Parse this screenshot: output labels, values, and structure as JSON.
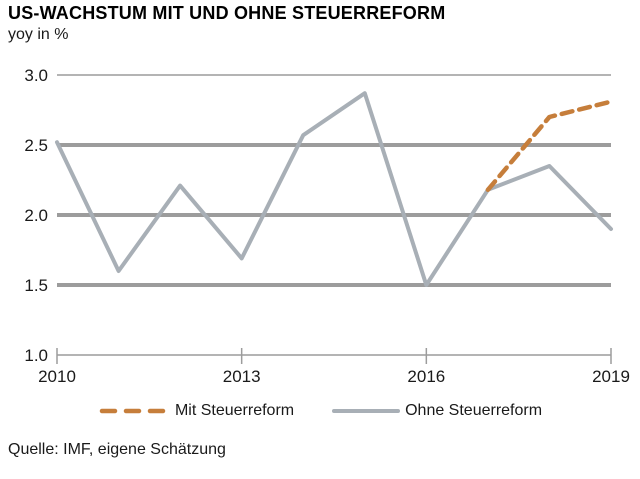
{
  "header": {
    "title": "US-WACHSTUM MIT UND OHNE STEUERREFORM",
    "subtitle": "yoy in %"
  },
  "chart_data": {
    "type": "line",
    "title": "US-WACHSTUM MIT UND OHNE STEUERREFORM",
    "ylabel": "yoy in %",
    "xlim": [
      2010,
      2019
    ],
    "ylim": [
      1.0,
      3.0
    ],
    "grid": "horizontal",
    "legend_position": "bottom",
    "xticks": [
      {
        "value": 2010,
        "label": "2010"
      },
      {
        "value": 2013,
        "label": "2013"
      },
      {
        "value": 2016,
        "label": "2016"
      },
      {
        "value": 2019,
        "label": "2019"
      }
    ],
    "yticks": [
      {
        "value": 1.0,
        "label": "1.0"
      },
      {
        "value": 1.5,
        "label": "1.5"
      },
      {
        "value": 2.0,
        "label": "2.0"
      },
      {
        "value": 2.5,
        "label": "2.5"
      },
      {
        "value": 3.0,
        "label": "3.0"
      }
    ],
    "series": [
      {
        "name": "Mit Steuerreform",
        "color": "#c67e3b",
        "line_style": "dashed",
        "x": [
          2017,
          2018,
          2019
        ],
        "values": [
          2.18,
          2.7,
          2.81
        ]
      },
      {
        "name": "Ohne Steuerreform",
        "color": "#a8afb6",
        "line_style": "solid",
        "x": [
          2010,
          2011,
          2012,
          2013,
          2014,
          2015,
          2016,
          2017,
          2018,
          2019
        ],
        "values": [
          2.52,
          1.6,
          2.21,
          1.69,
          2.57,
          2.87,
          1.5,
          2.18,
          2.35,
          1.9
        ]
      }
    ]
  },
  "colors": {
    "grid": "#9c9c9c",
    "axis": "#9c9c9c"
  },
  "source": {
    "text": "Quelle: IMF, eigene Schätzung"
  }
}
